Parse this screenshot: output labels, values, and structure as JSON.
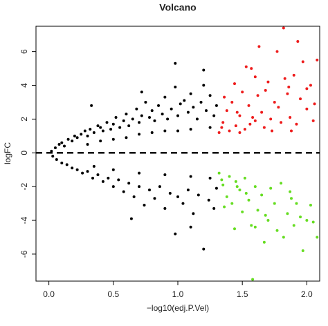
{
  "chart_data": {
    "type": "scatter",
    "title": "Volcano",
    "x_label": "−log10(edj.P.Vel)",
    "y_label": "logFC",
    "xlim": [
      -0.1,
      2.1
    ],
    "ylim": [
      -7.6,
      7.5
    ],
    "xticks": [
      {
        "value": 0,
        "label": "0.0"
      },
      0.5,
      {
        "value": 1,
        "label": "1.0"
      },
      1.5,
      {
        "value": 2,
        "label": "2.0"
      }
    ],
    "yticks": [
      -6,
      -4,
      -2,
      0,
      2,
      4,
      6
    ],
    "hline": 0,
    "series": [
      {
        "color": "#000000",
        "x": [
          0.02,
          0.05,
          0.08,
          0.1,
          0.12,
          0.15,
          0.18,
          0.2,
          0.22,
          0.25,
          0.28,
          0.3,
          0.32,
          0.35,
          0.38,
          0.4,
          0.42,
          0.45,
          0.48,
          0.5,
          0.52,
          0.55,
          0.58,
          0.6,
          0.62,
          0.65,
          0.68,
          0.7,
          0.72,
          0.75,
          0.78,
          0.8,
          0.82,
          0.85,
          0.88,
          0.9,
          0.92,
          0.95,
          0.98,
          1.0,
          1.02,
          1.05,
          1.08,
          1.1,
          1.12,
          1.15,
          1.18,
          1.2,
          1.22,
          1.25,
          1.28,
          1.3,
          0.98,
          1.2,
          0.72,
          0.3,
          0.5,
          0.7,
          0.9,
          1.1,
          1.25,
          0.6,
          0.4,
          0.8,
          1.0,
          0.33,
          0.03,
          0.06,
          0.1,
          0.14,
          0.18,
          0.22,
          0.26,
          0.3,
          0.34,
          0.38,
          0.42,
          0.46,
          0.5,
          0.54,
          0.58,
          0.62,
          0.66,
          0.7,
          0.74,
          0.78,
          0.82,
          0.86,
          0.9,
          0.94,
          0.98,
          1.0,
          1.04,
          1.08,
          1.12,
          1.16,
          1.2,
          1.24,
          1.28,
          1.3,
          0.64,
          1.1,
          0.5,
          0.7,
          0.9,
          1.1,
          1.25,
          0.35
        ],
        "y": [
          0.1,
          0.3,
          0.5,
          0.6,
          0.4,
          0.8,
          0.7,
          1.0,
          0.9,
          1.1,
          1.3,
          1.0,
          1.4,
          1.2,
          1.6,
          1.5,
          1.3,
          1.8,
          1.4,
          1.7,
          2.1,
          1.5,
          1.9,
          2.3,
          1.6,
          2.0,
          2.6,
          1.8,
          2.2,
          3.0,
          2.1,
          2.5,
          1.9,
          2.8,
          2.3,
          3.3,
          2.0,
          2.6,
          3.9,
          2.2,
          2.9,
          3.1,
          2.4,
          3.5,
          2.7,
          2.0,
          3.0,
          4.9,
          2.5,
          3.4,
          2.2,
          2.8,
          5.3,
          4.0,
          3.6,
          0.5,
          0.8,
          1.1,
          1.3,
          1.4,
          1.5,
          0.9,
          0.7,
          1.2,
          1.3,
          2.8,
          -0.2,
          -0.4,
          -0.6,
          -0.7,
          -0.9,
          -1.0,
          -1.2,
          -1.1,
          -1.5,
          -1.3,
          -1.7,
          -1.5,
          -2.0,
          -1.6,
          -2.3,
          -1.8,
          -2.6,
          -2.0,
          -3.1,
          -2.2,
          -2.7,
          -2.0,
          -3.3,
          -2.4,
          -4.8,
          -2.6,
          -3.0,
          -2.2,
          -3.6,
          -2.5,
          -5.7,
          -2.8,
          -3.3,
          -2.1,
          -3.9,
          -4.4,
          -1.0,
          -1.2,
          -1.3,
          -1.4,
          -1.5,
          -0.8
        ]
      },
      {
        "color": "#ee1c1c",
        "x": [
          1.32,
          1.35,
          1.38,
          1.4,
          1.42,
          1.45,
          1.48,
          1.5,
          1.52,
          1.55,
          1.57,
          1.6,
          1.62,
          1.65,
          1.67,
          1.7,
          1.72,
          1.75,
          1.77,
          1.8,
          1.82,
          1.85,
          1.87,
          1.9,
          1.92,
          1.95,
          1.97,
          2.0,
          2.03,
          2.05,
          2.08,
          1.36,
          1.44,
          1.53,
          1.6,
          1.68,
          1.78,
          1.83,
          1.88,
          1.93,
          2.0,
          2.06,
          1.34,
          1.46,
          1.58,
          1.73,
          1.63,
          1.86,
          1.48,
          1.56
        ],
        "y": [
          1.2,
          1.8,
          2.5,
          1.3,
          3.0,
          1.6,
          2.2,
          3.6,
          1.4,
          2.8,
          5.0,
          1.9,
          3.4,
          2.4,
          1.5,
          4.2,
          2.0,
          3.0,
          6.0,
          1.8,
          7.4,
          3.5,
          2.1,
          4.6,
          1.7,
          3.2,
          5.4,
          2.6,
          4.0,
          1.9,
          5.5,
          3.3,
          4.1,
          5.1,
          4.5,
          3.7,
          2.7,
          4.4,
          1.3,
          6.6,
          3.8,
          2.9,
          1.5,
          2.4,
          2.1,
          1.3,
          6.3,
          3.9,
          1.2,
          1.7
        ]
      },
      {
        "color": "#66dd22",
        "x": [
          1.32,
          1.35,
          1.38,
          1.4,
          1.42,
          1.45,
          1.48,
          1.5,
          1.52,
          1.55,
          1.57,
          1.6,
          1.62,
          1.65,
          1.67,
          1.7,
          1.72,
          1.75,
          1.77,
          1.8,
          1.82,
          1.85,
          1.87,
          1.9,
          1.92,
          1.95,
          1.97,
          2.0,
          2.03,
          2.05,
          2.08,
          1.36,
          1.44,
          1.53,
          1.6,
          1.58,
          1.68,
          1.88,
          1.34,
          1.46
        ],
        "y": [
          -1.2,
          -1.9,
          -2.6,
          -1.4,
          -3.0,
          -1.7,
          -2.2,
          -3.5,
          -1.5,
          -2.8,
          -4.3,
          -2.0,
          -3.4,
          -2.5,
          -5.3,
          -4.0,
          -2.1,
          -3.0,
          -4.6,
          -1.8,
          -5.0,
          -3.6,
          -2.3,
          -4.3,
          -3.0,
          -3.8,
          -5.8,
          -4.0,
          -3.1,
          -4.1,
          -5.0,
          -3.2,
          -4.5,
          -2.4,
          -4.4,
          -7.5,
          -3.7,
          -2.7,
          -1.6,
          -2.0
        ]
      }
    ]
  }
}
